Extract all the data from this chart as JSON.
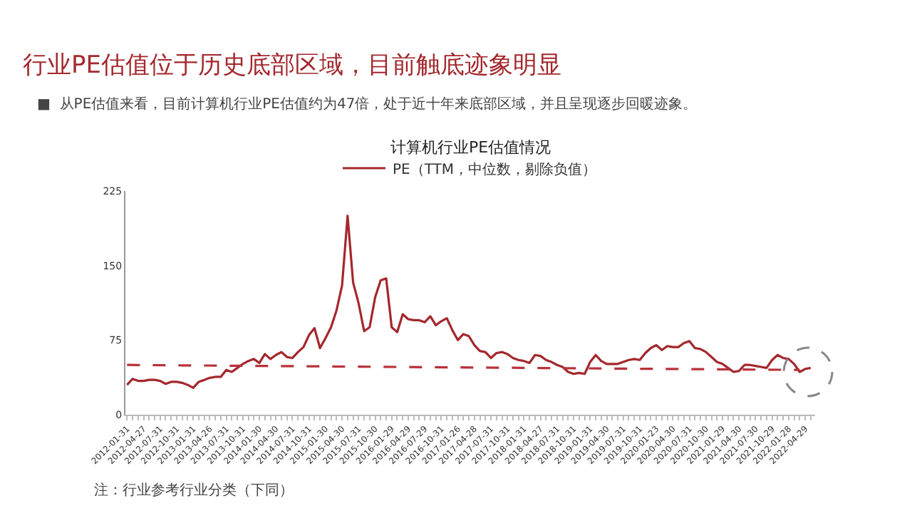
{
  "chart_data": {
    "type": "line",
    "title": "行业PE估值位于历史底部区域，目前触底迹象明显",
    "subtitle": "计算机行业PE估值情况",
    "annotations": [
      "■  从PE估值来看，目前计算机行业PE估值约为47倍，处于近十年来底部区域，并且呈现逐步回暖迹象。",
      "注：行业参考行业分类（下同）"
    ],
    "categories": [
      "2012-01-31",
      null,
      null,
      "2012-04-27",
      null,
      null,
      "2012-07-31",
      null,
      null,
      "2012-10-31",
      null,
      null,
      "2013-01-31",
      null,
      null,
      "2013-04-26",
      null,
      null,
      "2013-07-31",
      null,
      null,
      "2013-10-31",
      null,
      null,
      "2014-01-30",
      null,
      null,
      "2014-04-30",
      null,
      null,
      "2014-07-31",
      null,
      null,
      "2014-10-31",
      null,
      null,
      "2015-01-30",
      null,
      null,
      "2015-04-30",
      null,
      null,
      "2015-07-31",
      null,
      null,
      "2015-10-30",
      null,
      null,
      "2016-01-29",
      null,
      null,
      "2016-04-29",
      null,
      null,
      "2016-07-29",
      null,
      null,
      "2016-10-31",
      null,
      null,
      "2017-01-26",
      null,
      null,
      "2017-04-28",
      null,
      null,
      "2017-07-31",
      null,
      null,
      "2017-10-31",
      null,
      null,
      "2018-01-31",
      null,
      null,
      "2018-04-27",
      null,
      null,
      "2018-07-31",
      null,
      null,
      "2018-10-31",
      null,
      null,
      "2019-01-31",
      null,
      null,
      "2019-04-30",
      null,
      null,
      "2019-07-31",
      null,
      null,
      "2019-10-31",
      null,
      null,
      "2020-01-23",
      null,
      null,
      "2020-04-30",
      null,
      null,
      "2020-07-31",
      null,
      null,
      "2020-10-30",
      null,
      null,
      "2021-01-29",
      null,
      null,
      "2021-04-30",
      null,
      null,
      "2021-07-30",
      null,
      null,
      "2021-10-29",
      null,
      null,
      "2022-01-28",
      null,
      null,
      "2022-04-29",
      null
    ],
    "series": [
      {
        "name": "PE（TTM，中位数，剔除负值）",
        "color": "#a3282d",
        "line_style": "solid",
        "values": [
          30,
          36,
          34,
          34,
          35,
          35,
          34,
          31,
          33,
          33,
          32,
          30,
          27,
          33,
          35,
          37,
          38,
          38,
          45,
          43,
          47,
          51,
          54,
          56,
          52,
          61,
          56,
          60,
          63,
          58,
          57,
          63,
          68,
          80,
          87,
          67,
          77,
          88,
          105,
          130,
          200,
          133,
          112,
          84,
          88,
          118,
          135,
          137,
          88,
          83,
          101,
          96,
          95,
          95,
          93,
          99,
          90,
          94,
          97,
          85,
          75,
          81,
          79,
          70,
          64,
          63,
          57,
          62,
          63,
          61,
          57,
          55,
          54,
          52,
          60,
          59,
          55,
          53,
          50,
          48,
          43,
          41,
          42,
          41,
          53,
          60,
          54,
          51,
          51,
          51,
          53,
          55,
          56,
          55,
          62,
          67,
          70,
          65,
          69,
          68,
          68,
          72,
          74,
          67,
          66,
          63,
          58,
          53,
          51,
          47,
          43,
          44,
          50,
          50,
          49,
          48,
          47,
          55,
          60,
          57,
          56,
          51,
          43,
          46,
          47
        ]
      },
      {
        "type": "line",
        "color": "#b8323a",
        "line_style": "dashed",
        "values": [
          50,
          null,
          null,
          null,
          null,
          null,
          null,
          null,
          null,
          null,
          null,
          null,
          null,
          null,
          null,
          null,
          null,
          null,
          null,
          null,
          null,
          null,
          null,
          null,
          null,
          null,
          null,
          null,
          null,
          null,
          null,
          null,
          null,
          null,
          null,
          null,
          null,
          null,
          null,
          null,
          null,
          null,
          null,
          null,
          null,
          null,
          null,
          null,
          null,
          null,
          null,
          null,
          null,
          null,
          null,
          null,
          null,
          null,
          null,
          null,
          null,
          null,
          null,
          null,
          null,
          null,
          null,
          null,
          null,
          null,
          null,
          null,
          null,
          null,
          null,
          null,
          null,
          null,
          null,
          null,
          null,
          null,
          null,
          null,
          null,
          null,
          null,
          null,
          null,
          null,
          null,
          null,
          null,
          null,
          null,
          null,
          null,
          null,
          null,
          null,
          null,
          null,
          null,
          null,
          null,
          null,
          null,
          null,
          null,
          null,
          null,
          null,
          null,
          null,
          null,
          null,
          null,
          null,
          null,
          null,
          null,
          null,
          45,
          null,
          null
        ]
      }
    ],
    "ylim": [
      0,
      225
    ],
    "yticks": [
      0,
      75,
      150,
      225
    ],
    "grid": false,
    "legend": "top",
    "marker": "none"
  }
}
